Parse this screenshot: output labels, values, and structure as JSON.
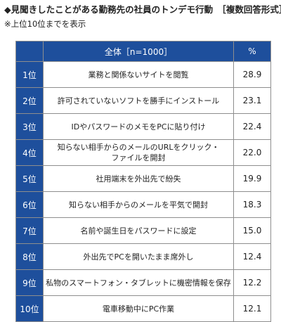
{
  "header": {
    "title": "◆見聞きしたことがある勤務先の社員のトンデモ行動　［複数回答形式］",
    "note": "※上位10位までを表示"
  },
  "chart_data": {
    "type": "table",
    "columns": [
      "全体［n=1000］",
      "%"
    ],
    "rows": [
      {
        "rank": "1位",
        "item": [
          "業務と関係ないサイトを閲覧"
        ],
        "value": "28.9"
      },
      {
        "rank": "2位",
        "item": [
          "許可されていないソフトを勝手にインストール"
        ],
        "value": "23.1"
      },
      {
        "rank": "3位",
        "item": [
          "IDやパスワードのメモをPCに貼り付け"
        ],
        "value": "22.4"
      },
      {
        "rank": "4位",
        "item": [
          "知らない相手からのメールのURLをクリック・",
          "ファイルを開封"
        ],
        "value": "22.0"
      },
      {
        "rank": "5位",
        "item": [
          "社用端末を外出先で紛失"
        ],
        "value": "19.9"
      },
      {
        "rank": "6位",
        "item": [
          "知らない相手からのメールを平気で開封"
        ],
        "value": "18.3"
      },
      {
        "rank": "7位",
        "item": [
          "名前や誕生日をパスワードに設定"
        ],
        "value": "15.0"
      },
      {
        "rank": "8位",
        "item": [
          "外出先でPCを開いたまま席外し"
        ],
        "value": "12.4"
      },
      {
        "rank": "9位",
        "item": [
          "私物のスマートフォン・タブレットに機密情報を保存"
        ],
        "value": "12.2"
      },
      {
        "rank": "10位",
        "item": [
          "電車移動中にPC作業"
        ],
        "value": "12.1"
      }
    ]
  },
  "colors": {
    "header_fill": "#1e4f9c",
    "border": "#8e8e8e"
  }
}
